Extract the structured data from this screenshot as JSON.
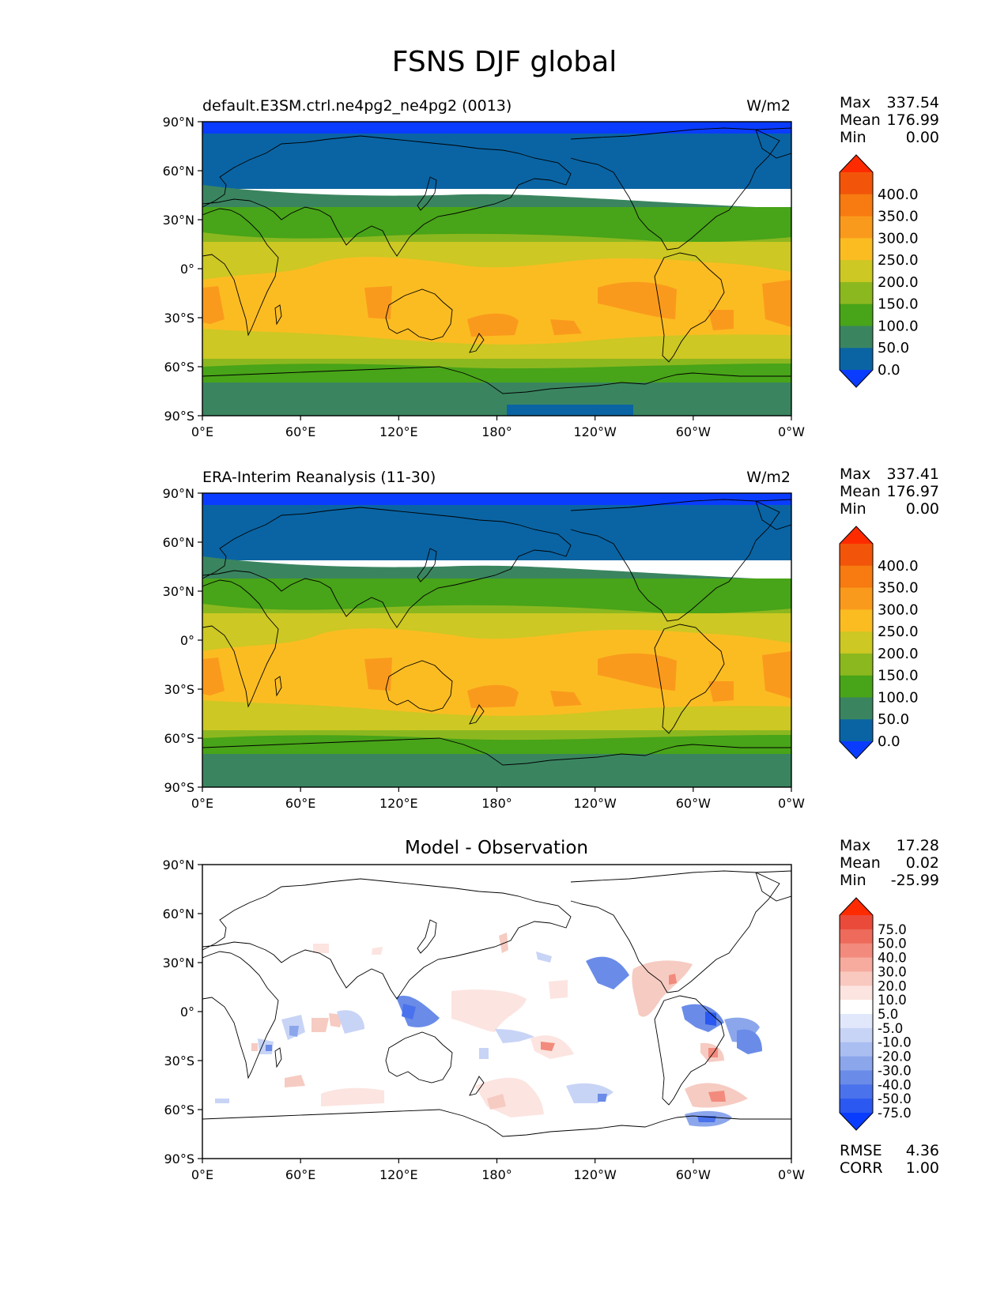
{
  "figure_title": "FSNS DJF global",
  "colorbar_colors": {
    "main": [
      "#0a3cff",
      "#0a64a3",
      "#3a8560",
      "#48a418",
      "#8cb81f",
      "#cdc823",
      "#fbbc22",
      "#fa9a1c",
      "#f77b10",
      "#f2550a",
      "#ff2b00"
    ],
    "diff": [
      "#0a3cff",
      "#2a58f0",
      "#4a72ec",
      "#6a8ce8",
      "#8ca6ec",
      "#aabef2",
      "#c8d4f6",
      "#e2e8fc",
      "#ffffff",
      "#fce4e0",
      "#f9c8bf",
      "#f6ab9e",
      "#f28b7d",
      "#ee6a5b",
      "#ea4a3a",
      "#ff2b00"
    ]
  },
  "lat_ticks": [
    "90°N",
    "60°N",
    "30°N",
    "0°",
    "30°S",
    "60°S",
    "90°S"
  ],
  "lon_ticks": [
    "0°E",
    "60°E",
    "120°E",
    "180°",
    "120°W",
    "60°W",
    "0°W"
  ],
  "panels": [
    {
      "title_left": "default.E3SM.ctrl.ne4pg2_ne4pg2 (0013)",
      "units": "W/m2",
      "stats": {
        "max_label": "Max",
        "max": "337.54",
        "mean_label": "Mean",
        "mean": "176.99",
        "min_label": "Min",
        "min": "0.00"
      },
      "colorbar_labels": [
        "400.0",
        "350.0",
        "300.0",
        "250.0",
        "200.0",
        "150.0",
        "100.0",
        "50.0",
        "0.0"
      ]
    },
    {
      "title_left": "ERA-Interim Reanalysis (11-30)",
      "units": "W/m2",
      "stats": {
        "max_label": "Max",
        "max": "337.41",
        "mean_label": "Mean",
        "mean": "176.97",
        "min_label": "Min",
        "min": "0.00"
      },
      "colorbar_labels": [
        "400.0",
        "350.0",
        "300.0",
        "250.0",
        "200.0",
        "150.0",
        "100.0",
        "50.0",
        "0.0"
      ]
    },
    {
      "title_center": "Model - Observation",
      "stats": {
        "max_label": "Max",
        "max": "17.28",
        "mean_label": "Mean",
        "mean": "0.02",
        "min_label": "Min",
        "min": "-25.99"
      },
      "colorbar_labels": [
        "75.0",
        "50.0",
        "40.0",
        "30.0",
        "20.0",
        "10.0",
        "5.0",
        "-5.0",
        "-10.0",
        "-20.0",
        "-30.0",
        "-40.0",
        "-50.0",
        "-75.0"
      ],
      "metrics": {
        "rmse_label": "RMSE",
        "rmse": "4.36",
        "corr_label": "CORR",
        "corr": "1.00"
      }
    }
  ],
  "chart_data": {
    "type": "heatmap",
    "title": "FSNS DJF global",
    "projection": "PlateCarree, central longitude 180",
    "xlim": [
      0,
      360
    ],
    "ylim": [
      -90,
      90
    ],
    "variable_units": "W/m2",
    "levels": [
      0,
      50,
      100,
      150,
      200,
      250,
      300,
      350,
      400
    ],
    "diff_levels": [
      -75,
      -50,
      -40,
      -30,
      -20,
      -10,
      -5,
      5,
      10,
      20,
      30,
      40,
      50,
      75
    ],
    "zonal_bands": [
      {
        "lat_range": [
          84,
          90
        ],
        "range": "<0"
      },
      {
        "lat_range": [
          50,
          84
        ],
        "range": "0-50"
      },
      {
        "lat_range": [
          38,
          50
        ],
        "range": "50-100"
      },
      {
        "lat_range": [
          24,
          38
        ],
        "range": "100-150"
      },
      {
        "lat_range": [
          10,
          24
        ],
        "range": "150-200"
      },
      {
        "lat_range": [
          -35,
          10
        ],
        "range": "200-300"
      },
      {
        "lat_range": [
          -50,
          -35
        ],
        "range": "250-300"
      },
      {
        "lat_range": [
          -65,
          -50
        ],
        "range": "200-250"
      },
      {
        "lat_range": [
          -75,
          -65
        ],
        "range": "150-200"
      },
      {
        "lat_range": [
          -90,
          -75
        ],
        "range": "50-100"
      }
    ]
  }
}
